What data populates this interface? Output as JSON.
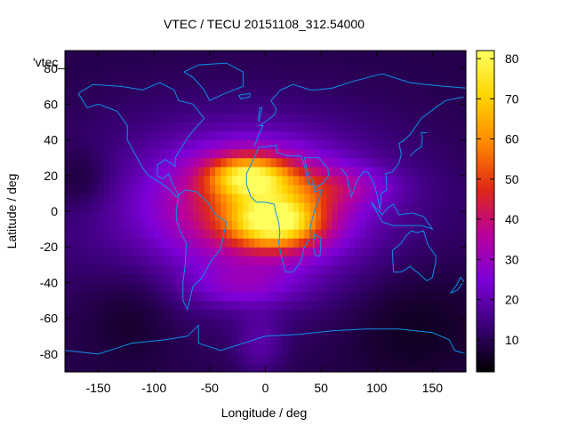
{
  "chart_data": {
    "type": "heatmap",
    "title": "VTEC / TECU 20151108_312.54000",
    "xlabel": "Longitude / deg",
    "ylabel": "Latitude / deg",
    "xlim": [
      -180,
      180
    ],
    "ylim": [
      -90,
      90
    ],
    "x_ticks": [
      -150,
      -100,
      -50,
      0,
      50,
      100,
      150
    ],
    "y_ticks": [
      -80,
      -60,
      -40,
      -20,
      0,
      20,
      40,
      60,
      80
    ],
    "colorbar": {
      "range": [
        2,
        82
      ],
      "ticks": [
        10,
        20,
        30,
        40,
        50,
        60,
        70,
        80
      ],
      "palette": [
        "#000000",
        "#3a0078",
        "#7d00d8",
        "#b8009a",
        "#e02a14",
        "#ff8a00",
        "#ffd400",
        "#ffff60"
      ]
    },
    "key_entry": "'vtec_",
    "grid": false,
    "description_fields": {
      "background_level_tecu": 10,
      "equatorial_peak_tecu": 80,
      "peak_longitude_deg": 10,
      "peak_latitude_deg": -5
    },
    "coastline_color": "#0e90e8"
  }
}
